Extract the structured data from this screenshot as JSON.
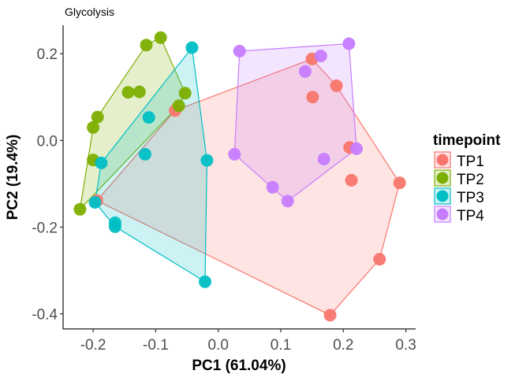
{
  "chart_data": {
    "type": "scatter",
    "title": "Glycolysis",
    "xlabel": "PC1 (61.04%)",
    "ylabel": "PC2 (19.4%)",
    "xlim": [
      -0.25,
      0.31
    ],
    "ylim": [
      -0.43,
      0.27
    ],
    "x_ticks": [
      -0.2,
      -0.1,
      0.0,
      0.1,
      0.2,
      0.3
    ],
    "x_tick_labels": [
      "-0.2",
      "-0.1",
      "0.0",
      "0.1",
      "0.2",
      "0.3"
    ],
    "y_ticks": [
      0.2,
      0.0,
      -0.2,
      -0.4
    ],
    "y_tick_labels": [
      "0.2",
      "0.0",
      "-0.2",
      "-0.4"
    ],
    "grid": false,
    "hulls": true,
    "legend": {
      "title": "timepoint",
      "position": "right"
    },
    "series": [
      {
        "name": "TP1",
        "color": "#F8766D",
        "points": [
          [
            -0.194,
            -0.139
          ],
          [
            -0.069,
            0.069
          ],
          [
            0.15,
            0.188
          ],
          [
            0.189,
            0.126
          ],
          [
            0.151,
            0.1
          ],
          [
            0.21,
            -0.016
          ],
          [
            0.213,
            -0.092
          ],
          [
            0.29,
            -0.098
          ],
          [
            0.258,
            -0.274
          ],
          [
            0.179,
            -0.403
          ]
        ]
      },
      {
        "name": "TP2",
        "color": "#7CAE00",
        "points": [
          [
            -0.115,
            0.22
          ],
          [
            -0.092,
            0.237
          ],
          [
            -0.144,
            0.111
          ],
          [
            -0.126,
            0.112
          ],
          [
            -0.053,
            0.109
          ],
          [
            -0.063,
            0.08
          ],
          [
            -0.193,
            0.054
          ],
          [
            -0.2,
            0.03
          ],
          [
            -0.2,
            -0.045
          ],
          [
            -0.221,
            -0.159
          ]
        ]
      },
      {
        "name": "TP3",
        "color": "#00BFC4",
        "points": [
          [
            -0.042,
            0.214
          ],
          [
            -0.111,
            0.053
          ],
          [
            -0.117,
            -0.032
          ],
          [
            -0.018,
            -0.046
          ],
          [
            -0.187,
            -0.052
          ],
          [
            -0.197,
            -0.143
          ],
          [
            -0.165,
            -0.19
          ],
          [
            -0.165,
            -0.199
          ],
          [
            -0.021,
            -0.326
          ]
        ]
      },
      {
        "name": "TP4",
        "color": "#C77CFF",
        "points": [
          [
            0.034,
            0.206
          ],
          [
            0.209,
            0.223
          ],
          [
            0.164,
            0.195
          ],
          [
            0.139,
            0.159
          ],
          [
            0.026,
            -0.032
          ],
          [
            0.087,
            -0.108
          ],
          [
            0.111,
            -0.14
          ],
          [
            0.169,
            -0.043
          ],
          [
            0.221,
            -0.019
          ]
        ]
      }
    ]
  }
}
